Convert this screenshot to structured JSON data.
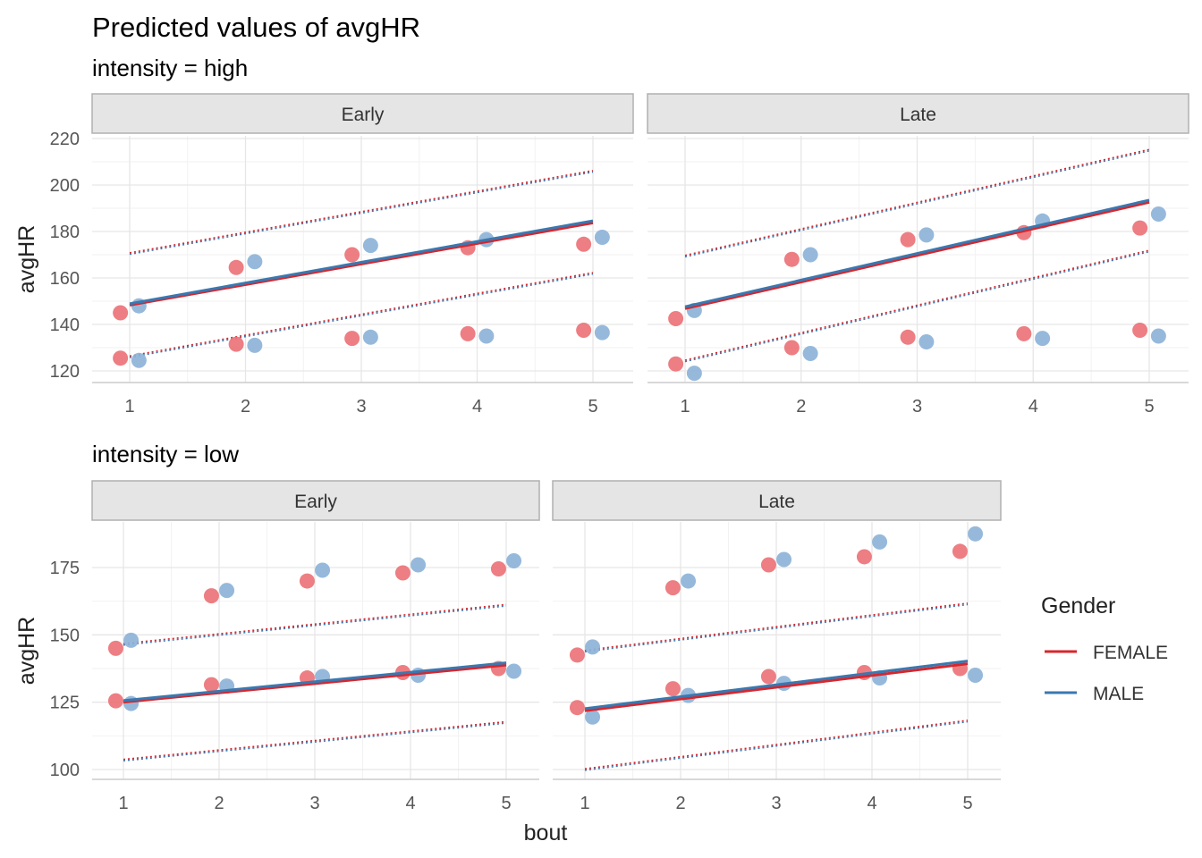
{
  "title": "Predicted values of avgHR",
  "xlabel": "bout",
  "ylabel": "avgHR",
  "legend": {
    "title": "Gender",
    "entries": [
      {
        "label": "FEMALE",
        "color": "#d7262d"
      },
      {
        "label": "MALE",
        "color": "#3a78b0"
      }
    ]
  },
  "point_colors": {
    "FEMALE": "#ec7378",
    "MALE": "#8db3d8"
  },
  "chart_data": [
    {
      "type": "scatter",
      "group": "intensity = high",
      "facets": [
        {
          "strip": "Early",
          "xlim": [
            1,
            5
          ],
          "ylim": [
            115,
            221
          ],
          "yticks": [
            120,
            140,
            160,
            180,
            200,
            220
          ],
          "xticks": [
            1,
            2,
            3,
            4,
            5
          ],
          "fit": {
            "FEMALE": [
              148.3,
              183.7
            ],
            "MALE": [
              148.9,
              184.6
            ]
          },
          "ci_upper": [
            170.5,
            205.9
          ],
          "ci_lower": [
            126.1,
            162.0
          ],
          "points": {
            "FEMALE": [
              [
                1,
                145
              ],
              [
                2,
                164.5
              ],
              [
                3,
                170
              ],
              [
                4,
                173
              ],
              [
                5,
                174.5
              ],
              [
                1,
                125.5
              ],
              [
                2,
                131.5
              ],
              [
                3,
                134
              ],
              [
                4,
                136
              ],
              [
                5,
                137.5
              ]
            ],
            "MALE": [
              [
                1,
                148
              ],
              [
                2,
                167
              ],
              [
                3,
                174
              ],
              [
                4,
                176.5
              ],
              [
                5,
                177.5
              ],
              [
                1,
                124.5
              ],
              [
                2,
                131
              ],
              [
                3,
                134.5
              ],
              [
                4,
                135
              ],
              [
                5,
                136.5
              ]
            ]
          }
        },
        {
          "strip": "Late",
          "xlim": [
            1,
            5
          ],
          "ylim": [
            115,
            221
          ],
          "yticks": [
            120,
            140,
            160,
            180,
            200,
            220
          ],
          "xticks": [
            1,
            2,
            3,
            4,
            5
          ],
          "fit": {
            "FEMALE": [
              146.8,
              192.6
            ],
            "MALE": [
              147.6,
              193.5
            ]
          },
          "ci_upper": [
            169.4,
            215.0
          ],
          "ci_lower": [
            124.3,
            171.6
          ],
          "points": {
            "FEMALE": [
              [
                1,
                142.5
              ],
              [
                2,
                168
              ],
              [
                3,
                176.5
              ],
              [
                4,
                179.5
              ],
              [
                5,
                181.5
              ],
              [
                1,
                123
              ],
              [
                2,
                130
              ],
              [
                3,
                134.5
              ],
              [
                4,
                136
              ],
              [
                5,
                137.5
              ]
            ],
            "MALE": [
              [
                1,
                146
              ],
              [
                2,
                170
              ],
              [
                3,
                178.5
              ],
              [
                4,
                184.5
              ],
              [
                5,
                187.5
              ],
              [
                1,
                119
              ],
              [
                2,
                127.5
              ],
              [
                3,
                132.5
              ],
              [
                4,
                134
              ],
              [
                5,
                135
              ]
            ]
          }
        }
      ]
    },
    {
      "type": "scatter",
      "group": "intensity = low",
      "facets": [
        {
          "strip": "Early",
          "xlim": [
            1,
            5
          ],
          "ylim": [
            96,
            193
          ],
          "yticks": [
            100,
            125,
            150,
            175
          ],
          "xticks": [
            1,
            2,
            3,
            4,
            5
          ],
          "fit": {
            "FEMALE": [
              125.0,
              138.8
            ],
            "MALE": [
              125.6,
              139.6
            ]
          },
          "ci_upper": [
            146.5,
            161.0
          ],
          "ci_lower": [
            103.5,
            117.5
          ],
          "points": {
            "FEMALE": [
              [
                1,
                145
              ],
              [
                2,
                164.5
              ],
              [
                3,
                170
              ],
              [
                4,
                173
              ],
              [
                5,
                174.5
              ],
              [
                1,
                125.5
              ],
              [
                2,
                131.5
              ],
              [
                3,
                134
              ],
              [
                4,
                136
              ],
              [
                5,
                137.5
              ]
            ],
            "MALE": [
              [
                1,
                148
              ],
              [
                2,
                166.5
              ],
              [
                3,
                174
              ],
              [
                4,
                176
              ],
              [
                5,
                177.5
              ],
              [
                1,
                124.5
              ],
              [
                2,
                131
              ],
              [
                3,
                134.5
              ],
              [
                4,
                135
              ],
              [
                5,
                136.5
              ]
            ]
          }
        },
        {
          "strip": "Late",
          "xlim": [
            1,
            5
          ],
          "ylim": [
            96,
            193
          ],
          "yticks": [
            100,
            125,
            150,
            175
          ],
          "xticks": [
            1,
            2,
            3,
            4,
            5
          ],
          "fit": {
            "FEMALE": [
              121.8,
              139.3
            ],
            "MALE": [
              122.6,
              140.3
            ]
          },
          "ci_upper": [
            144.0,
            161.5
          ],
          "ci_lower": [
            100.0,
            118.0
          ],
          "points": {
            "FEMALE": [
              [
                1,
                142.5
              ],
              [
                2,
                167.5
              ],
              [
                3,
                176
              ],
              [
                4,
                179
              ],
              [
                5,
                181
              ],
              [
                1,
                123
              ],
              [
                2,
                130
              ],
              [
                3,
                134.5
              ],
              [
                4,
                136
              ],
              [
                5,
                137.5
              ]
            ],
            "MALE": [
              [
                1,
                145.5
              ],
              [
                2,
                170
              ],
              [
                3,
                178
              ],
              [
                4,
                184.5
              ],
              [
                5,
                187.5
              ],
              [
                1,
                119.5
              ],
              [
                2,
                127.5
              ],
              [
                3,
                132
              ],
              [
                4,
                134
              ],
              [
                5,
                135
              ]
            ]
          }
        }
      ]
    }
  ]
}
